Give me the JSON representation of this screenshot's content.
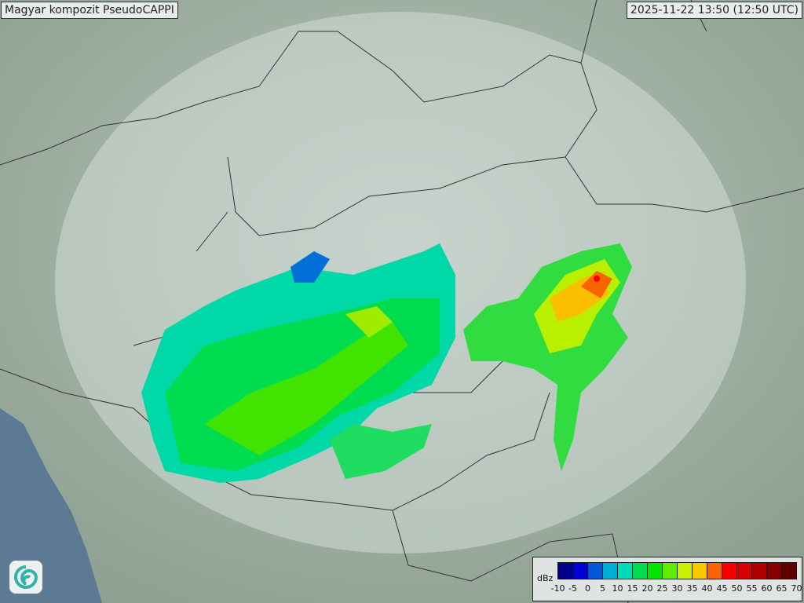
{
  "header": {
    "title": "Magyar kompozit  PseudoCAPPI",
    "timestamp": "2025-11-22 13:50 (12:50 UTC)"
  },
  "legend": {
    "unit": "dBz",
    "ticks": [
      "-10",
      "-5",
      "0",
      "5",
      "10",
      "15",
      "20",
      "25",
      "30",
      "35",
      "40",
      "45",
      "50",
      "55",
      "60",
      "65",
      "70"
    ],
    "colors": [
      "#00008c",
      "#0000d0",
      "#0058d8",
      "#00acd8",
      "#00dcb8",
      "#00dc50",
      "#00e400",
      "#60ec00",
      "#c8f000",
      "#f8c800",
      "#f86400",
      "#f80000",
      "#d40000",
      "#ac0000",
      "#840000",
      "#600000"
    ]
  },
  "logo": {
    "icon": "weather-service-swirl-logo"
  }
}
